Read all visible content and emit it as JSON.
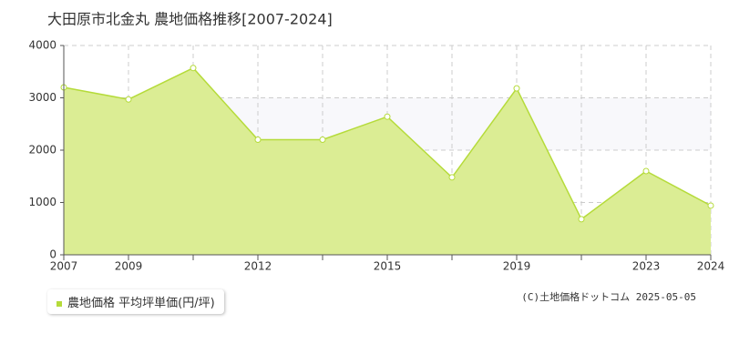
{
  "chart_data": {
    "type": "area",
    "title": "大田原市北金丸 農地価格推移[2007-2024]",
    "categories": [
      "2007",
      "2009",
      null,
      "2012",
      null,
      "2015",
      null,
      "2019",
      null,
      "2023",
      "2024"
    ],
    "series": [
      {
        "name": "農地価格 平均坪単価(円/坪)",
        "color": "#b5db3a",
        "fill": "#dbed94",
        "values": [
          3200,
          2970,
          3570,
          2200,
          2200,
          2640,
          1480,
          3180,
          680,
          1600,
          940
        ]
      }
    ],
    "ylim": [
      0,
      4000
    ],
    "yticks": [
      0,
      1000,
      2000,
      3000,
      4000
    ],
    "grid": true,
    "credit": "(C)土地価格ドットコム 2025-05-05"
  }
}
